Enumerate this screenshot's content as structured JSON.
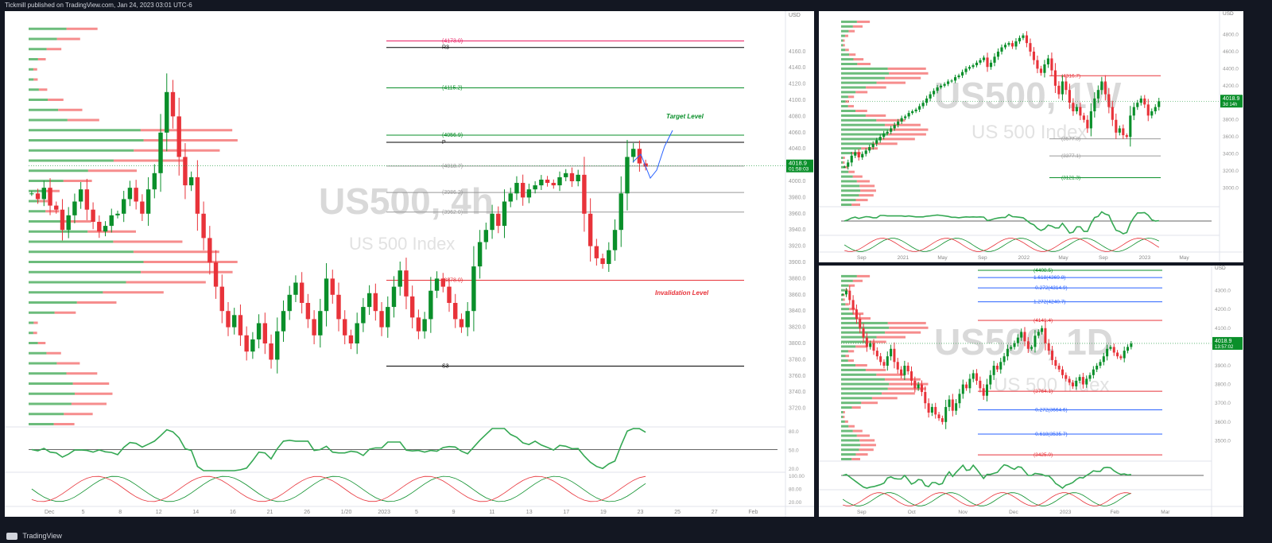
{
  "header": {
    "publisher": "Tickmill published on TradingView.com, Jan 24, 2023 03:01 UTC-6"
  },
  "footer": {
    "brand": "TradingView"
  },
  "colors": {
    "up": "#089981",
    "down": "#f23645",
    "green_candle": "#0a8f2a",
    "red_candle": "#e8333a",
    "bg": "#131722",
    "panel": "#ffffff",
    "price_badge": "#0a8f2a"
  },
  "chart_data": [
    {
      "id": "main-4h",
      "type": "candlestick",
      "title": "US500, 4h",
      "subtitle": "US 500 Index",
      "currency": "USD",
      "last_price": "4018.9",
      "countdown": "01:58:03",
      "ylim": [
        3700,
        4200
      ],
      "y_ticks": [
        "4160.0",
        "4140.0",
        "4120.0",
        "4100.0",
        "4080.0",
        "4060.0",
        "4040.0",
        "4020.0",
        "4000.0",
        "3980.0",
        "3960.0",
        "3940.0",
        "3920.0",
        "3900.0",
        "3880.0",
        "3860.0",
        "3840.0",
        "3820.0",
        "3800.0",
        "3780.0",
        "3760.0",
        "3740.0",
        "3720.0"
      ],
      "x_ticks": [
        "Dec",
        "5",
        "8",
        "12",
        "14",
        "16",
        "21",
        "26",
        "1/20",
        "2023",
        "5",
        "9",
        "11",
        "13",
        "17",
        "19",
        "23",
        "25",
        "27",
        "Feb"
      ],
      "levels": [
        {
          "label": "(4173.0)",
          "value": 4173.0,
          "color": "#e91e63"
        },
        {
          "label": "R3",
          "value": 4165,
          "color": "#000000"
        },
        {
          "label": "(4115.2)",
          "value": 4115.2,
          "color": "#0a8f2a"
        },
        {
          "label": "(4056.9)",
          "value": 4056.9,
          "color": "#0a8f2a"
        },
        {
          "label": "P",
          "value": 4048,
          "color": "#000000"
        },
        {
          "label": "(4018.7)",
          "value": 4018.7,
          "color": "#999999"
        },
        {
          "label": "(3986.2)",
          "value": 3986.2,
          "color": "#999999"
        },
        {
          "label": "(3962.0)",
          "value": 3962.0,
          "color": "#999999"
        },
        {
          "label": "(3878.0)",
          "value": 3878.0,
          "color": "#e8333a"
        },
        {
          "label": "S3",
          "value": 3772,
          "color": "#000000"
        }
      ],
      "fib_labels": [
        "0.786(4058.8)",
        "0.618(3996.0)",
        "0.382(3907.7)",
        "0.236(3853.1)"
      ],
      "annotations": {
        "target": "Target Level",
        "invalidation": "Invalidation Level"
      },
      "candles_close": [
        3985,
        3978,
        3992,
        3970,
        3965,
        3940,
        3958,
        3975,
        3990,
        3965,
        3950,
        3938,
        3945,
        3958,
        3960,
        3978,
        3992,
        3975,
        3960,
        3990,
        4010,
        4060,
        4110,
        4080,
        4030,
        3995,
        4005,
        3960,
        3930,
        3900,
        3870,
        3840,
        3820,
        3835,
        3810,
        3790,
        3805,
        3825,
        3800,
        3780,
        3815,
        3840,
        3860,
        3875,
        3850,
        3830,
        3810,
        3840,
        3880,
        3860,
        3830,
        3810,
        3800,
        3825,
        3845,
        3862,
        3840,
        3820,
        3845,
        3870,
        3890,
        3858,
        3832,
        3815,
        3830,
        3865,
        3880,
        3870,
        3850,
        3830,
        3820,
        3840,
        3895,
        3925,
        3940,
        3960,
        3945,
        3975,
        3985,
        3998,
        3980,
        3990,
        3995,
        4002,
        3998,
        3995,
        4005,
        4010,
        4000,
        4008,
        3960,
        3920,
        3905,
        3898,
        3915,
        3940,
        3985,
        4030,
        4040,
        4022,
        4018
      ],
      "rsi_ylim": [
        0,
        100
      ],
      "rsi_ticks": [
        "80.0",
        "50.0",
        "20.0"
      ],
      "stoch_ticks": [
        "100.00",
        "80.00",
        "20.00"
      ]
    },
    {
      "id": "top-right-1w",
      "type": "candlestick",
      "title": "US500, 1W",
      "subtitle": "US 500 Index",
      "currency": "USD",
      "last_price": "4018.9",
      "countdown": "3d 14h",
      "ylim": [
        2800,
        5000
      ],
      "y_ticks": [
        "4800.0",
        "4600.0",
        "4400.0",
        "4200.0",
        "4000.0",
        "3800.0",
        "3600.0",
        "3400.0",
        "3200.0",
        "3000.0"
      ],
      "x_ticks": [
        "Sep",
        "2021",
        "May",
        "Sep",
        "2022",
        "May",
        "Sep",
        "2023",
        "May"
      ],
      "levels": [
        {
          "label": "(4316.7)",
          "value": 4316.7,
          "color": "#e8333a"
        },
        {
          "label": "(3577.8)",
          "value": 3577.8,
          "color": "#999999"
        },
        {
          "label": "(3377.1)",
          "value": 3377.1,
          "color": "#999999"
        },
        {
          "label": "(3121.3)",
          "value": 3121.3,
          "color": "#0a8f2a"
        }
      ],
      "candles_close": [
        3250,
        3300,
        3380,
        3420,
        3360,
        3400,
        3440,
        3480,
        3520,
        3560,
        3600,
        3640,
        3660,
        3700,
        3740,
        3780,
        3820,
        3840,
        3880,
        3900,
        3920,
        3960,
        4000,
        4050,
        4100,
        4140,
        4180,
        4200,
        4220,
        4250,
        4260,
        4300,
        4320,
        4360,
        4400,
        4420,
        4440,
        4470,
        4500,
        4530,
        4420,
        4470,
        4540,
        4600,
        4650,
        4680,
        4700,
        4660,
        4720,
        4760,
        4790,
        4700,
        4600,
        4500,
        4400,
        4350,
        4450,
        4520,
        4380,
        4200,
        4100,
        4250,
        4150,
        4000,
        3900,
        3950,
        3850,
        3800,
        3700,
        3900,
        4050,
        4150,
        4250,
        4100,
        3950,
        3800,
        3650,
        3700,
        3620,
        3600,
        3850,
        3950,
        4000,
        4050,
        3980,
        3850,
        3900,
        3950,
        4018
      ]
    },
    {
      "id": "bottom-right-1d",
      "type": "candlestick",
      "title": "US500, 1D",
      "subtitle": "US 500 Index",
      "currency": "USD",
      "last_price": "4018.9",
      "countdown": "13:57:02",
      "ylim": [
        3400,
        4400
      ],
      "y_ticks": [
        "4300.0",
        "4200.0",
        "4100.0",
        "4000.0",
        "3900.0",
        "3800.0",
        "3700.0",
        "3600.0",
        "3500.0"
      ],
      "x_ticks": [
        "Sep",
        "Oct",
        "Nov",
        "Dec",
        "2023",
        "Feb",
        "Mar"
      ],
      "levels": [
        {
          "label": "(4408.5)",
          "value": 4408.5,
          "color": "#0a8f2a"
        },
        {
          "label": "1.618(4369.8)",
          "value": 4369.8,
          "color": "#2962ff"
        },
        {
          "label": "-0.272(4314.9)",
          "value": 4314.9,
          "color": "#2962ff"
        },
        {
          "label": "1.272(4240.7)",
          "value": 4240.7,
          "color": "#2962ff"
        },
        {
          "label": "(4141.4)",
          "value": 4141.4,
          "color": "#e8333a"
        },
        {
          "label": "(3764.1)",
          "value": 3764.1,
          "color": "#e8333a"
        },
        {
          "label": "-0.272(3664.6)",
          "value": 3664.6,
          "color": "#2962ff"
        },
        {
          "label": "-0.618(3535.7)",
          "value": 3535.7,
          "color": "#2962ff"
        },
        {
          "label": "(3425.0)",
          "value": 3425.0,
          "color": "#e8333a"
        }
      ],
      "candles_close": [
        4280,
        4300,
        4250,
        4200,
        4150,
        4100,
        4050,
        4000,
        4020,
        3980,
        3950,
        3920,
        3900,
        3950,
        3990,
        3920,
        3880,
        3850,
        3900,
        3870,
        3820,
        3780,
        3800,
        3760,
        3700,
        3650,
        3680,
        3640,
        3620,
        3600,
        3680,
        3720,
        3660,
        3700,
        3750,
        3800,
        3780,
        3830,
        3860,
        3820,
        3780,
        3740,
        3800,
        3850,
        3900,
        3880,
        3920,
        3950,
        3990,
        4000,
        4020,
        4050,
        4080,
        4030,
        3990,
        4000,
        4060,
        4080,
        4100,
        4020,
        3980,
        3930,
        3900,
        3880,
        3850,
        3830,
        3810,
        3790,
        3820,
        3840,
        3800,
        3830,
        3850,
        3880,
        3900,
        3920,
        3950,
        3990,
        4000,
        3970,
        3950,
        3940,
        3980,
        4000,
        4018
      ]
    }
  ]
}
